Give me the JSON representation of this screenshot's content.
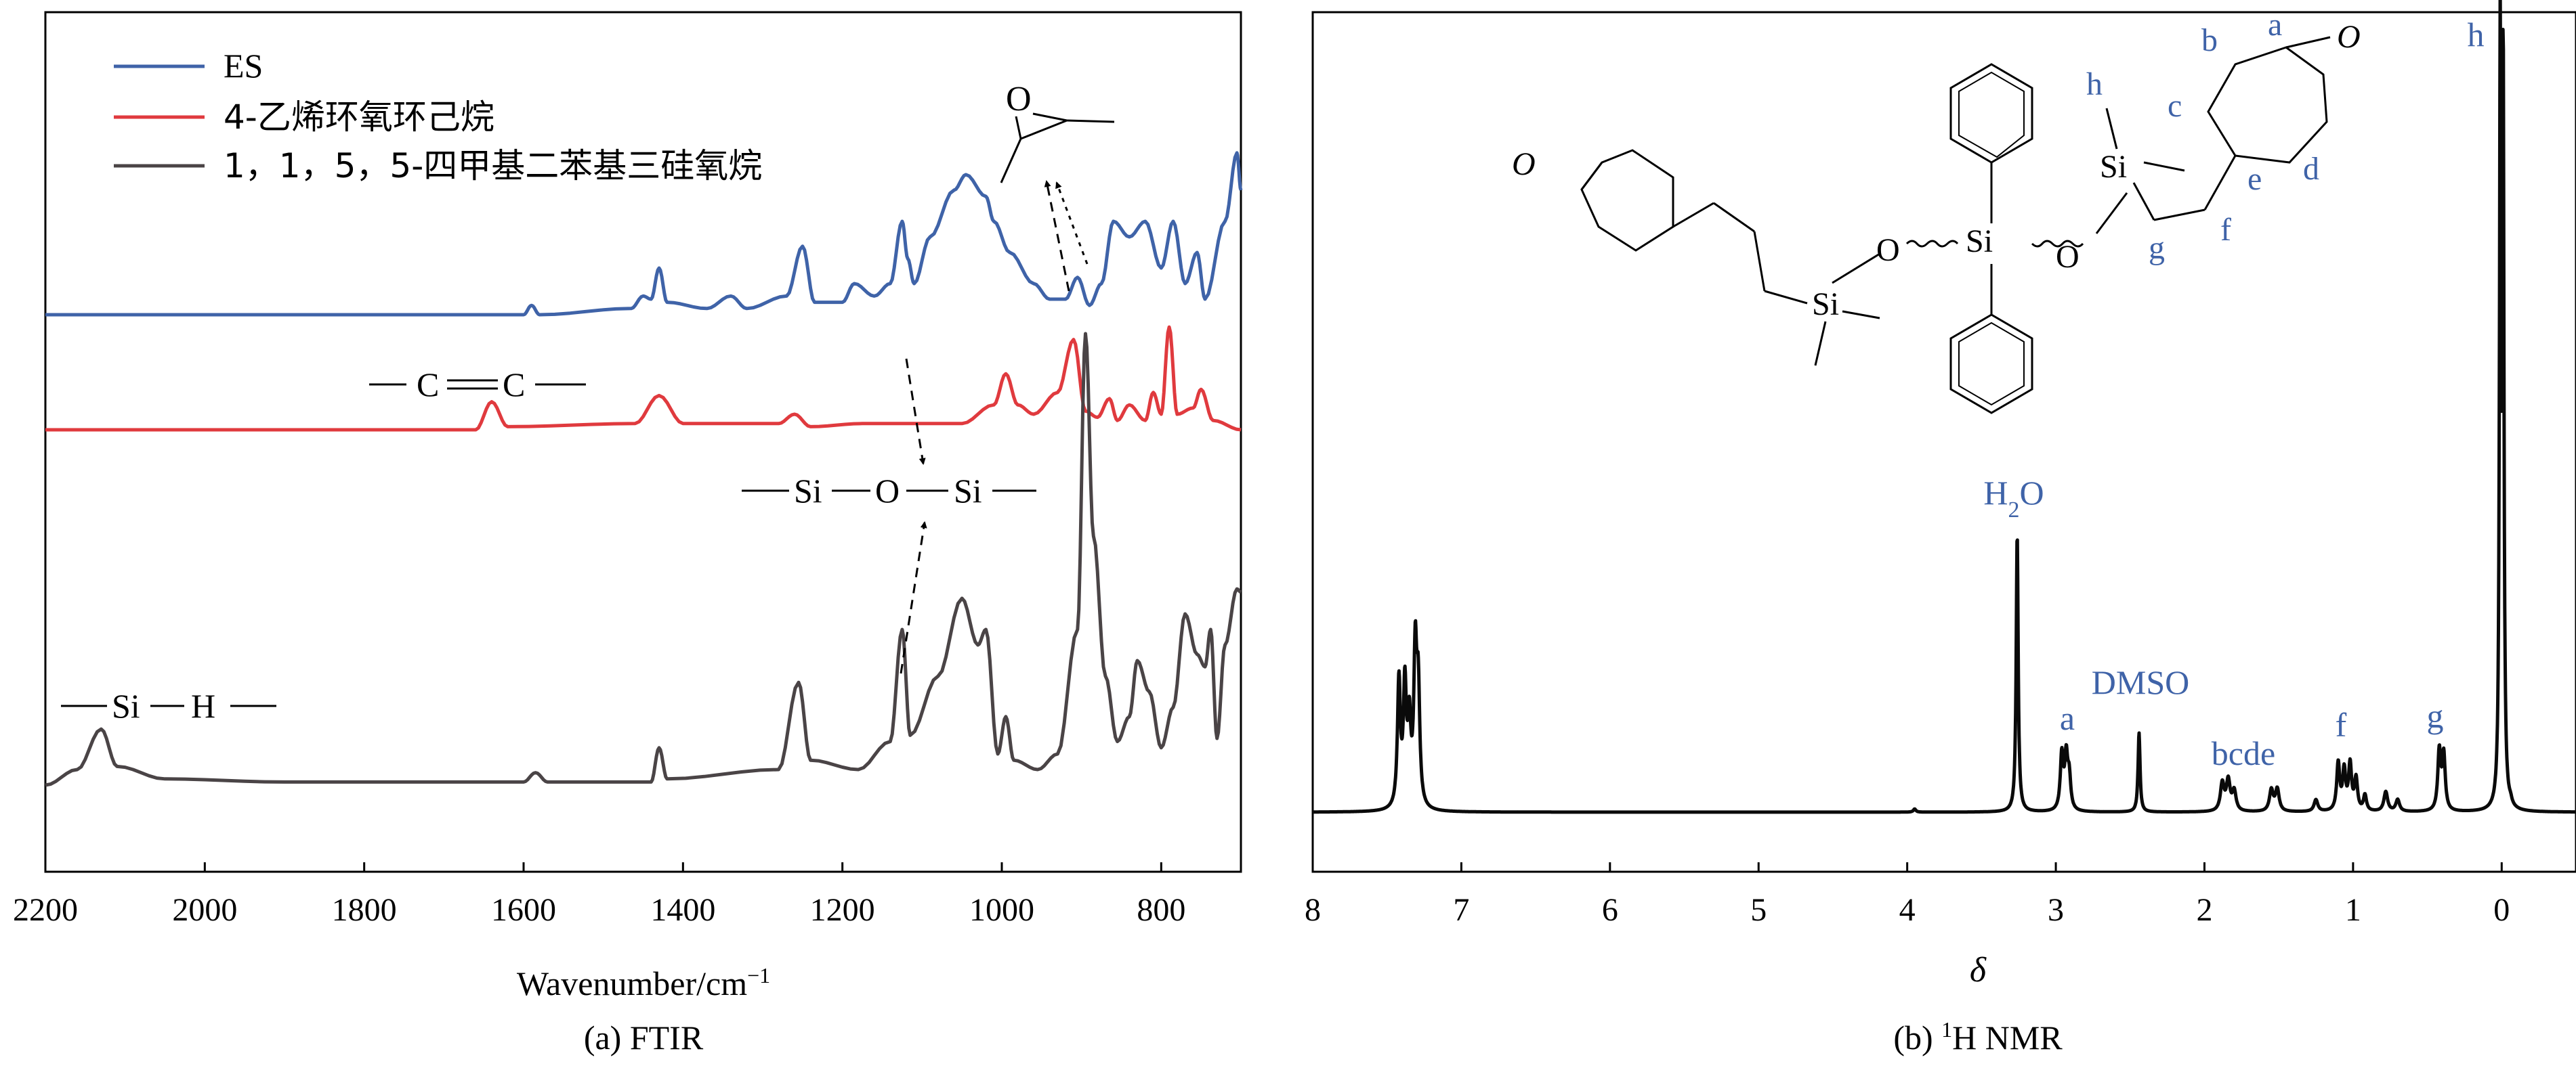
{
  "chart_data": [
    {
      "type": "line",
      "panel": "FTIR",
      "xlabel": "Wavenumber/cm⁻¹",
      "caption": "(a) FTIR",
      "xlim": [
        2200,
        700
      ],
      "x_reversed": true,
      "xticks": [
        2200,
        2000,
        1800,
        1600,
        1400,
        1200,
        1000,
        800
      ],
      "ylabel": "",
      "yticks": [],
      "legend_position": "top-left",
      "colors": {
        "ES": "#3f63a8",
        "vinyl": "#e03a3e",
        "siloxane": "#4a4446"
      },
      "series": [
        {
          "name": "ES",
          "color": "#3f63a8",
          "baseline": 0.18,
          "points": [
            [
              2200,
              0
            ],
            [
              1600,
              0
            ],
            [
              1590,
              0.03
            ],
            [
              1580,
              0
            ],
            [
              1465,
              0.02
            ],
            [
              1450,
              0.06
            ],
            [
              1440,
              0.05
            ],
            [
              1430,
              0.15
            ],
            [
              1420,
              0.04
            ],
            [
              1370,
              0.02
            ],
            [
              1340,
              0.06
            ],
            [
              1320,
              0.02
            ],
            [
              1270,
              0.06
            ],
            [
              1250,
              0.22
            ],
            [
              1235,
              0.04
            ],
            [
              1200,
              0.04
            ],
            [
              1185,
              0.1
            ],
            [
              1160,
              0.06
            ],
            [
              1140,
              0.1
            ],
            [
              1125,
              0.3
            ],
            [
              1118,
              0.18
            ],
            [
              1110,
              0.1
            ],
            [
              1090,
              0.25
            ],
            [
              1060,
              0.4
            ],
            [
              1045,
              0.45
            ],
            [
              1020,
              0.38
            ],
            [
              1010,
              0.3
            ],
            [
              990,
              0.2
            ],
            [
              960,
              0.1
            ],
            [
              940,
              0.05
            ],
            [
              920,
              0.05
            ],
            [
              905,
              0.12
            ],
            [
              890,
              0.03
            ],
            [
              875,
              0.1
            ],
            [
              860,
              0.3
            ],
            [
              840,
              0.25
            ],
            [
              820,
              0.3
            ],
            [
              800,
              0.15
            ],
            [
              785,
              0.3
            ],
            [
              770,
              0.1
            ],
            [
              755,
              0.2
            ],
            [
              745,
              0.05
            ],
            [
              720,
              0.3
            ],
            [
              705,
              0.52
            ],
            [
              700,
              0.4
            ]
          ]
        },
        {
          "name": "4-乙烯环氧环己烷",
          "color": "#e03a3e",
          "baseline": 0.0,
          "points": [
            [
              2200,
              0
            ],
            [
              1660,
              0
            ],
            [
              1640,
              0.09
            ],
            [
              1620,
              0.01
            ],
            [
              1460,
              0.02
            ],
            [
              1430,
              0.11
            ],
            [
              1400,
              0.02
            ],
            [
              1280,
              0.02
            ],
            [
              1260,
              0.05
            ],
            [
              1240,
              0.01
            ],
            [
              1175,
              0.02
            ],
            [
              1050,
              0.02
            ],
            [
              1010,
              0.08
            ],
            [
              995,
              0.18
            ],
            [
              980,
              0.08
            ],
            [
              960,
              0.05
            ],
            [
              930,
              0.12
            ],
            [
              910,
              0.29
            ],
            [
              895,
              0.06
            ],
            [
              880,
              0.04
            ],
            [
              865,
              0.1
            ],
            [
              855,
              0.03
            ],
            [
              840,
              0.08
            ],
            [
              820,
              0.03
            ],
            [
              810,
              0.12
            ],
            [
              800,
              0.05
            ],
            [
              790,
              0.33
            ],
            [
              780,
              0.05
            ],
            [
              760,
              0.07
            ],
            [
              750,
              0.13
            ],
            [
              735,
              0.03
            ],
            [
              700,
              0.0
            ]
          ]
        },
        {
          "name": "1，1，5，5-四甲基二苯基三硅氧烷",
          "color": "#4a4446",
          "baseline": -0.55,
          "points": [
            [
              2200,
              0
            ],
            [
              2160,
              0.05
            ],
            [
              2130,
              0.18
            ],
            [
              2110,
              0.06
            ],
            [
              2050,
              0.02
            ],
            [
              1900,
              0.01
            ],
            [
              1700,
              0.01
            ],
            [
              1600,
              0.01
            ],
            [
              1585,
              0.04
            ],
            [
              1570,
              0.01
            ],
            [
              1440,
              0.01
            ],
            [
              1430,
              0.12
            ],
            [
              1420,
              0.02
            ],
            [
              1280,
              0.05
            ],
            [
              1255,
              0.33
            ],
            [
              1240,
              0.08
            ],
            [
              1180,
              0.05
            ],
            [
              1140,
              0.14
            ],
            [
              1125,
              0.5
            ],
            [
              1115,
              0.16
            ],
            [
              1080,
              0.35
            ],
            [
              1050,
              0.6
            ],
            [
              1030,
              0.45
            ],
            [
              1020,
              0.5
            ],
            [
              1005,
              0.1
            ],
            [
              995,
              0.22
            ],
            [
              985,
              0.08
            ],
            [
              955,
              0.05
            ],
            [
              930,
              0.1
            ],
            [
              905,
              0.5
            ],
            [
              895,
              1.45
            ],
            [
              885,
              0.8
            ],
            [
              870,
              0.35
            ],
            [
              855,
              0.14
            ],
            [
              840,
              0.22
            ],
            [
              830,
              0.4
            ],
            [
              815,
              0.3
            ],
            [
              800,
              0.12
            ],
            [
              785,
              0.25
            ],
            [
              770,
              0.55
            ],
            [
              755,
              0.42
            ],
            [
              745,
              0.38
            ],
            [
              738,
              0.5
            ],
            [
              730,
              0.15
            ],
            [
              720,
              0.45
            ],
            [
              705,
              0.63
            ],
            [
              700,
              0.62
            ]
          ]
        }
      ],
      "annotations": [
        {
          "text": "—C══C—",
          "kind": "group-label"
        },
        {
          "text": "—Si—O—Si—",
          "kind": "group-label"
        },
        {
          "text": "—Si—H—",
          "kind": "group-label"
        },
        {
          "text": "O",
          "kind": "epoxide-structure"
        }
      ]
    },
    {
      "type": "line",
      "panel": "1H NMR",
      "xlabel": "δ",
      "caption_prefix": "(b) ",
      "caption_sup": "1",
      "caption_suffix": "H NMR",
      "xlim": [
        8,
        -0.5
      ],
      "x_reversed": true,
      "xticks": [
        8,
        7,
        6,
        5,
        4,
        3,
        2,
        1,
        0
      ],
      "color": "#0a0a0a",
      "peaks": [
        {
          "delta": 7.42,
          "height": 0.16,
          "width": 0.012
        },
        {
          "delta": 7.38,
          "height": 0.15,
          "width": 0.012
        },
        {
          "delta": 7.35,
          "height": 0.1,
          "width": 0.012
        },
        {
          "delta": 7.31,
          "height": 0.19,
          "width": 0.012
        },
        {
          "delta": 7.29,
          "height": 0.14,
          "width": 0.012
        },
        {
          "delta": 3.95,
          "height": 0.004,
          "width": 0.01
        },
        {
          "delta": 3.26,
          "height": 0.35,
          "width": 0.008
        },
        {
          "delta": 2.96,
          "height": 0.07,
          "width": 0.012
        },
        {
          "delta": 2.93,
          "height": 0.065,
          "width": 0.012
        },
        {
          "delta": 2.91,
          "height": 0.04,
          "width": 0.012
        },
        {
          "delta": 2.44,
          "height": 0.1,
          "width": 0.008
        },
        {
          "delta": 1.88,
          "height": 0.035,
          "width": 0.015
        },
        {
          "delta": 1.84,
          "height": 0.038,
          "width": 0.015
        },
        {
          "delta": 1.8,
          "height": 0.025,
          "width": 0.015
        },
        {
          "delta": 1.55,
          "height": 0.027,
          "width": 0.015
        },
        {
          "delta": 1.51,
          "height": 0.028,
          "width": 0.015
        },
        {
          "delta": 1.25,
          "height": 0.015,
          "width": 0.015
        },
        {
          "delta": 1.1,
          "height": 0.06,
          "width": 0.012
        },
        {
          "delta": 1.06,
          "height": 0.05,
          "width": 0.012
        },
        {
          "delta": 1.02,
          "height": 0.058,
          "width": 0.012
        },
        {
          "delta": 0.98,
          "height": 0.04,
          "width": 0.012
        },
        {
          "delta": 0.92,
          "height": 0.02,
          "width": 0.012
        },
        {
          "delta": 0.78,
          "height": 0.025,
          "width": 0.015
        },
        {
          "delta": 0.7,
          "height": 0.015,
          "width": 0.015
        },
        {
          "delta": 0.42,
          "height": 0.075,
          "width": 0.012
        },
        {
          "delta": 0.39,
          "height": 0.07,
          "width": 0.012
        },
        {
          "delta": 0.01,
          "height": 0.97,
          "width": 0.006
        },
        {
          "delta": -0.01,
          "height": 0.93,
          "width": 0.006
        },
        {
          "delta": -0.06,
          "height": 0.005,
          "width": 0.01
        }
      ],
      "peak_labels": [
        "a",
        "bcde",
        "f",
        "g",
        "h"
      ],
      "solvent_label_main": "H",
      "solvent_label_sub": "2",
      "solvent_label_end": "O",
      "dmso_label": "DMSO",
      "structure_atom_labels": [
        "a",
        "b",
        "c",
        "d",
        "e",
        "f",
        "g",
        "h",
        "O",
        "Si"
      ]
    }
  ],
  "texts": {
    "ftir_caption": "(a) FTIR",
    "ftir_xlabel": "Wavenumber/cm",
    "ftir_xlabel_sup": "−1",
    "legend_es": "ES",
    "legend_vinyl": "4-乙烯环氧环己烷",
    "legend_siloxane": "1，1，5，5-四甲基二苯基三硅氧烷",
    "group_cc_c1": "C",
    "group_cc_c2": "C",
    "group_siosi_si1": "Si",
    "group_siosi_o": "O",
    "group_siosi_si2": "Si",
    "group_sih_si": "Si",
    "group_sih_h": "H",
    "epoxide_o": "O",
    "nmr_caption_prefix": "(b) ",
    "nmr_caption_sup": "1",
    "nmr_caption_suffix": "H NMR",
    "nmr_xlabel": "δ",
    "nmr_h2o_h": "H",
    "nmr_h2o_2": "2",
    "nmr_h2o_o": "O",
    "nmr_dmso": "DMSO",
    "nmr_a": "a",
    "nmr_bcde": "bcde",
    "nmr_f": "f",
    "nmr_g": "g",
    "nmr_h": "h",
    "struct_o_left": "O",
    "struct_o_right": "O",
    "struct_si_left": "Si",
    "struct_si_mid": "Si",
    "struct_si_right": "Si",
    "struct_o1": "O",
    "struct_o2": "O",
    "struct_a": "a",
    "struct_b": "b",
    "struct_c": "c",
    "struct_d": "d",
    "struct_e": "e",
    "struct_f": "f",
    "struct_g": "g",
    "struct_h": "h"
  }
}
